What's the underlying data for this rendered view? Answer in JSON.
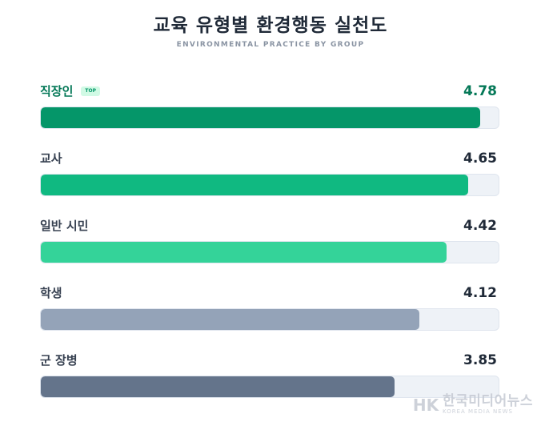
{
  "title": "교육 유형별 환경행동 실천도",
  "subtitle": "ENVIRONMENTAL PRACTICE BY GROUP",
  "chart_data": {
    "type": "bar",
    "orientation": "horizontal",
    "title": "교육 유형별 환경행동 실천도",
    "subtitle": "ENVIRONMENTAL PRACTICE BY GROUP",
    "categories": [
      "직장인",
      "교사",
      "일반 시민",
      "학생",
      "군 장병"
    ],
    "values": [
      4.78,
      4.65,
      4.42,
      4.12,
      3.85
    ],
    "value_labels": [
      "4.78",
      "4.65",
      "4.42",
      "4.12",
      "3.85"
    ],
    "xlim": [
      0,
      5
    ],
    "colors": [
      "#059669",
      "#10b981",
      "#34d399",
      "#94a3b8",
      "#64748b"
    ],
    "highlight": {
      "index": 0,
      "badge": "TOP",
      "label_color": "#047857"
    },
    "grid": false,
    "legend": "none"
  },
  "watermark": {
    "logo_text": "HK",
    "text_ko": "한국미디어뉴스",
    "text_en": "KOREA MEDIA NEWS"
  }
}
